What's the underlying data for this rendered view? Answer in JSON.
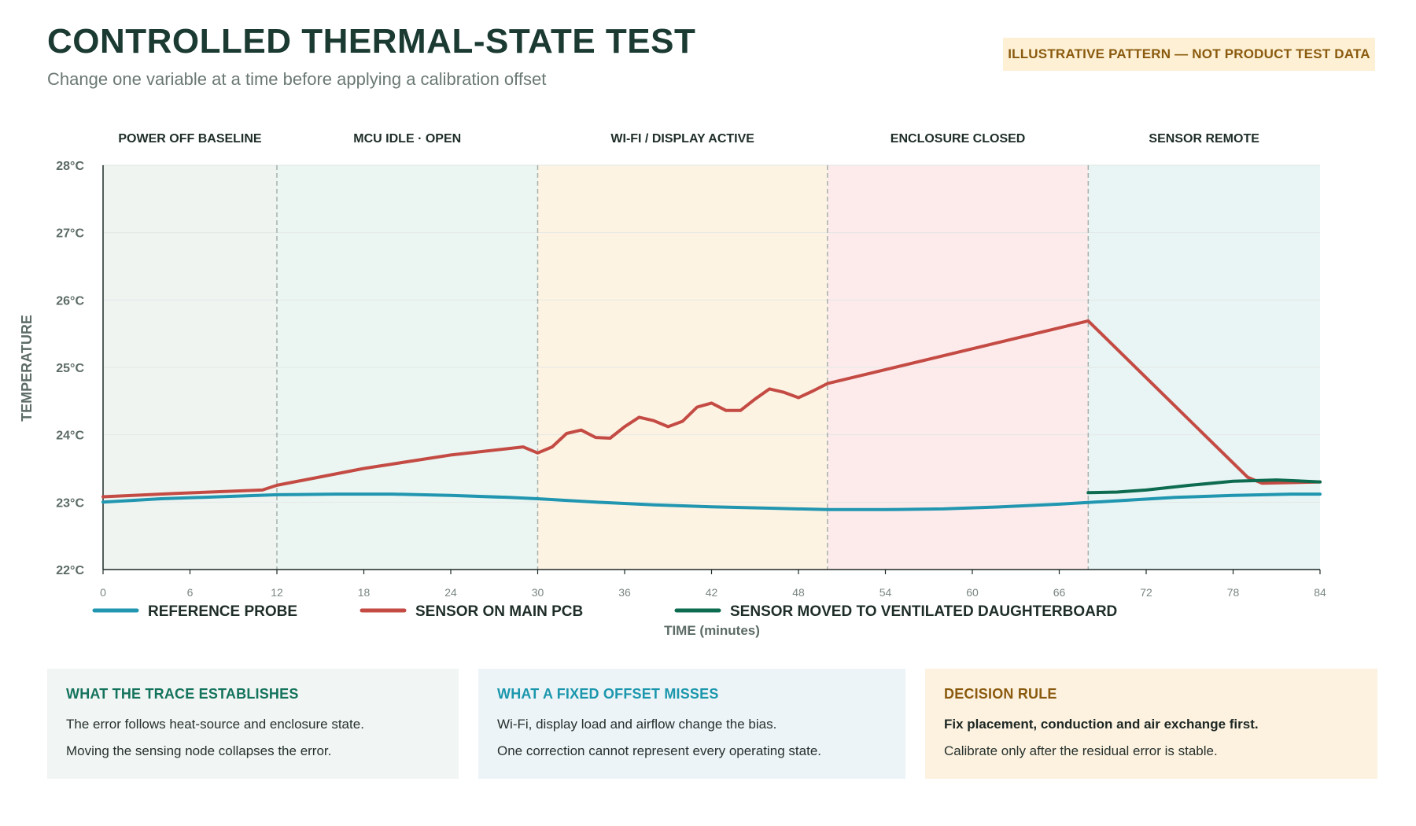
{
  "header": {
    "title": "CONTROLLED THERMAL-STATE TEST",
    "subtitle": "Change one variable at a time before applying a calibration offset",
    "note": "ILLUSTRATIVE PATTERN — NOT PRODUCT TEST DATA"
  },
  "chart_data": {
    "type": "line",
    "title": "",
    "xlabel": "TIME (minutes)",
    "ylabel": "TEMPERATURE",
    "xlim": [
      0,
      84
    ],
    "ylim": [
      22,
      28
    ],
    "x_ticks": [
      0,
      6,
      12,
      18,
      24,
      30,
      36,
      42,
      48,
      54,
      60,
      66,
      72,
      78,
      84
    ],
    "y_ticks": [
      22,
      23,
      24,
      25,
      26,
      27,
      28
    ],
    "y_tick_suffix": "°C",
    "grid": "horizontal",
    "legend_position": "bottom",
    "phases": [
      {
        "label": "POWER OFF BASELINE",
        "start": 0,
        "end": 12,
        "color": "#eff4f1"
      },
      {
        "label": "MCU IDLE · OPEN",
        "start": 12,
        "end": 30,
        "color": "#ebf6f2"
      },
      {
        "label": "WI-FI / DISPLAY ACTIVE",
        "start": 30,
        "end": 50,
        "color": "#fdf3e2"
      },
      {
        "label": "ENCLOSURE CLOSED",
        "start": 50,
        "end": 68,
        "color": "#fdebec"
      },
      {
        "label": "SENSOR REMOTE",
        "start": 68,
        "end": 84,
        "color": "#e8f5f4"
      }
    ],
    "series": [
      {
        "name": "REFERENCE PROBE",
        "color": "#2196b0",
        "x": [
          0,
          4,
          8,
          12,
          16,
          20,
          24,
          28,
          30,
          34,
          38,
          42,
          46,
          50,
          54,
          58,
          62,
          66,
          70,
          74,
          78,
          82,
          84
        ],
        "y": [
          23.0,
          23.05,
          23.08,
          23.11,
          23.12,
          23.12,
          23.1,
          23.07,
          23.05,
          23.0,
          22.96,
          22.93,
          22.91,
          22.89,
          22.89,
          22.9,
          22.93,
          22.97,
          23.02,
          23.07,
          23.1,
          23.12,
          23.12
        ]
      },
      {
        "name": "SENSOR ON MAIN PCB",
        "color": "#c44b44",
        "x": [
          0,
          5,
          11,
          12,
          18,
          24,
          29,
          30,
          31,
          32,
          33,
          34,
          35,
          36,
          37,
          38,
          39,
          40,
          41,
          42,
          43,
          44,
          45,
          46,
          47,
          48,
          49,
          50,
          68,
          79,
          80,
          84
        ],
        "y": [
          23.08,
          23.13,
          23.18,
          23.25,
          23.5,
          23.7,
          23.82,
          23.73,
          23.82,
          24.02,
          24.07,
          23.96,
          23.95,
          24.12,
          24.26,
          24.21,
          24.12,
          24.2,
          24.41,
          24.47,
          24.36,
          24.36,
          24.53,
          24.68,
          24.63,
          24.55,
          24.65,
          24.76,
          25.69,
          23.37,
          23.28,
          23.3
        ]
      },
      {
        "name": "SENSOR MOVED TO VENTILATED DAUGHTERBOARD",
        "color": "#0d6b4f",
        "x": [
          68,
          70,
          72,
          75,
          78,
          81,
          84
        ],
        "y": [
          23.14,
          23.15,
          23.18,
          23.25,
          23.31,
          23.33,
          23.3
        ]
      }
    ]
  },
  "cards": [
    {
      "heading": "WHAT THE TRACE ESTABLISHES",
      "line1": "The error follows heat-source and enclosure state.",
      "line2": "Moving the sensing node collapses the error."
    },
    {
      "heading": "WHAT A FIXED OFFSET MISSES",
      "line1": "Wi-Fi, display load and airflow change the bias.",
      "line2": "One correction cannot represent every operating state."
    },
    {
      "heading": "DECISION RULE",
      "line1": "Fix placement, conduction and air exchange first.",
      "line2": "Calibrate only after the residual error is stable."
    }
  ]
}
